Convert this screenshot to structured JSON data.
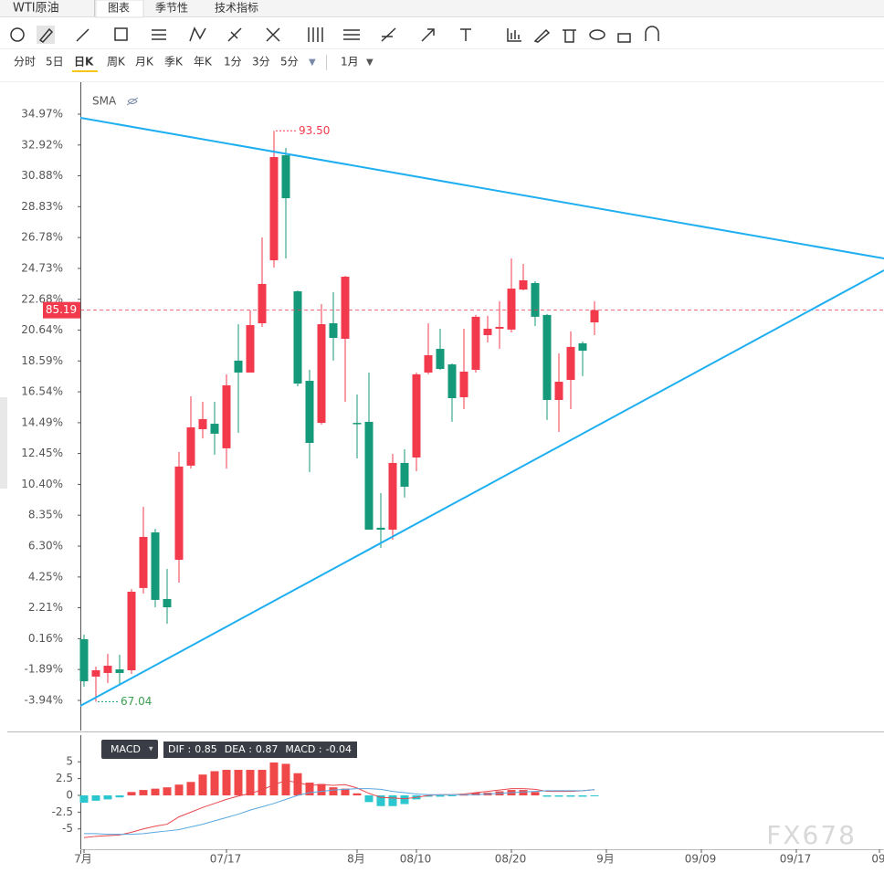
{
  "header": {
    "symbol": "WTI原油",
    "tabs": [
      "图表",
      "季节性",
      "技术指标"
    ]
  },
  "periods": [
    "分时",
    "5日",
    "日K",
    "周K",
    "月K",
    "季K",
    "年K",
    "1分",
    "3分",
    "5分"
  ],
  "range": "1月",
  "watermark": "FX678",
  "chart_data": [
    {
      "type": "candlestick",
      "indicator": "SMA",
      "categories": [
        "7月",
        null,
        null,
        null,
        null,
        null,
        null,
        null,
        null,
        null,
        null,
        null,
        "07/17",
        null,
        null,
        null,
        null,
        null,
        null,
        null,
        null,
        null,
        null,
        "8月",
        null,
        null,
        null,
        null,
        "08/10",
        null,
        null,
        null,
        null,
        null,
        null,
        null,
        "08/20",
        null,
        null,
        null,
        null,
        null,
        null,
        null,
        "9月",
        null,
        null,
        null,
        null,
        null,
        null,
        null,
        "09/09",
        null,
        null,
        null,
        null,
        null,
        null,
        null,
        "09/17",
        null,
        null,
        null,
        null,
        null,
        null,
        "09"
      ],
      "open": [
        0.12,
        -2.36,
        -2.12,
        -1.88,
        -1.94,
        3.52,
        7.21,
        2.79,
        5.39,
        11.64,
        14.06,
        14.42,
        12.79,
        18.61,
        17.82,
        21.09,
        25.27,
        32.24,
        23.21,
        17.27,
        14.48,
        21.09,
        20.06,
        14.48,
        14.55,
        7.52,
        7.39,
        11.82,
        12.18,
        17.82,
        19.39,
        18.36,
        16.18,
        18.0,
        20.3,
        20.73,
        20.67,
        23.33,
        23.76,
        21.64,
        16.0,
        17.33,
        19.76,
        21.15,
        null,
        null,
        null,
        null,
        null,
        null,
        null,
        null,
        null,
        null,
        null,
        null,
        null,
        null,
        null,
        null,
        null,
        null,
        null,
        null,
        null,
        null,
        null,
        null
      ],
      "high": [
        0.42,
        -1.7,
        -0.85,
        -0.91,
        3.45,
        8.91,
        7.45,
        4.79,
        12.55,
        16.24,
        15.88,
        15.88,
        17.7,
        21.03,
        21.94,
        26.79,
        33.86,
        32.73,
        23.27,
        18.0,
        22.36,
        23.15,
        24.24,
        16.36,
        17.82,
        9.82,
        12.42,
        12.73,
        17.82,
        21.09,
        20.73,
        18.42,
        20.73,
        21.64,
        21.58,
        22.55,
        25.39,
        25.03,
        23.88,
        21.7,
        19.09,
        20.55,
        19.88,
        22.55,
        null,
        null,
        null,
        null,
        null,
        null,
        null,
        null,
        null,
        null,
        null,
        null,
        null,
        null,
        null,
        null,
        null,
        null,
        null,
        null,
        null,
        null,
        null,
        null
      ],
      "low": [
        -3.03,
        -4.02,
        -2.79,
        -2.91,
        -2.18,
        3.15,
        2.24,
        1.15,
        3.88,
        11.45,
        13.45,
        12.36,
        11.45,
        13.82,
        17.82,
        20.85,
        24.79,
        25.39,
        16.91,
        11.21,
        14.36,
        18.61,
        15.88,
        12.12,
        7.39,
        6.18,
        6.73,
        9.52,
        11.27,
        17.7,
        18.0,
        14.55,
        15.39,
        17.82,
        19.82,
        19.39,
        20.48,
        23.27,
        20.91,
        14.67,
        13.88,
        15.39,
        17.58,
        20.3,
        null,
        null,
        null,
        null,
        null,
        null,
        null,
        null,
        null,
        null,
        null,
        null,
        null,
        null,
        null,
        null,
        null,
        null,
        null,
        null,
        null,
        null,
        null,
        null
      ],
      "close": [
        -2.67,
        -1.94,
        -1.64,
        -2.12,
        3.27,
        6.91,
        2.73,
        2.24,
        11.58,
        14.18,
        14.73,
        13.76,
        16.97,
        17.82,
        20.97,
        23.7,
        32.12,
        29.39,
        17.09,
        13.15,
        21.03,
        20.12,
        24.18,
        14.42,
        7.39,
        7.39,
        11.82,
        10.24,
        17.7,
        18.97,
        18.06,
        16.12,
        17.88,
        21.52,
        20.73,
        20.85,
        23.39,
        23.94,
        21.52,
        16.0,
        17.21,
        19.52,
        19.27,
        21.96,
        null,
        null,
        null,
        null,
        null,
        null,
        null,
        null,
        null,
        null,
        null,
        null,
        null,
        null,
        null,
        null,
        null,
        null,
        null,
        null,
        null,
        null,
        null,
        null
      ],
      "up_color": "#f23a4c",
      "down_color": "#14997a",
      "ylim": [
        -5.94,
        37.09
      ],
      "yticks": [
        {
          "value": -3.94,
          "label": "-3.94%"
        },
        {
          "value": -1.89,
          "label": "-1.89%"
        },
        {
          "value": 0.16,
          "label": "0.16%"
        },
        {
          "value": 2.21,
          "label": "2.21%"
        },
        {
          "value": 4.25,
          "label": "4.25%"
        },
        {
          "value": 6.3,
          "label": "6.30%"
        },
        {
          "value": 8.35,
          "label": "8.35%"
        },
        {
          "value": 10.4,
          "label": "10.40%"
        },
        {
          "value": 12.45,
          "label": "12.45%"
        },
        {
          "value": 14.49,
          "label": "14.49%"
        },
        {
          "value": 16.54,
          "label": "16.54%"
        },
        {
          "value": 18.59,
          "label": "18.59%"
        },
        {
          "value": 20.64,
          "label": "20.64%"
        },
        {
          "value": 22.68,
          "label": "22.68%"
        },
        {
          "value": 24.73,
          "label": "24.73%"
        },
        {
          "value": 26.78,
          "label": "26.78%"
        },
        {
          "value": 28.83,
          "label": "28.83%"
        },
        {
          "value": 30.88,
          "label": "30.88%"
        },
        {
          "value": 32.92,
          "label": "32.92%"
        },
        {
          "value": 34.97,
          "label": "34.97%"
        }
      ],
      "max_label": "93.50",
      "min_label": "67.04",
      "last_label": "85.19"
    },
    {
      "type": "macd",
      "title": "MACD",
      "ylim": [
        -8.03,
        6.12
      ],
      "yticks": [
        5,
        2.5,
        0,
        -2.5,
        -5
      ],
      "readout": [
        {
          "label": "DIF :",
          "value": 0.85
        },
        {
          "label": "DEA :",
          "value": 0.87
        },
        {
          "label": "MACD :",
          "value": -0.04
        }
      ],
      "series": [
        {
          "type": "bar",
          "up_color": "#f04848",
          "down_color": "#2cc6cf",
          "values": [
            -1.1,
            -0.8,
            -0.6,
            -0.3,
            0.5,
            0.8,
            1.0,
            1.2,
            1.6,
            2.0,
            3.1,
            3.6,
            3.8,
            3.8,
            3.8,
            3.8,
            4.9,
            4.7,
            3.3,
            1.9,
            1.7,
            1.2,
            1.0,
            0.3,
            -1.0,
            -1.6,
            -1.6,
            -1.3,
            -0.6,
            -0.2,
            -0.2,
            -0.1,
            0.1,
            0.4,
            0.4,
            0.6,
            0.8,
            0.8,
            0.5,
            -0.2,
            -0.2,
            -0.2,
            -0.2,
            -0.04,
            null,
            null,
            null,
            null,
            null,
            null,
            null,
            null,
            null,
            null,
            null,
            null,
            null,
            null,
            null,
            null,
            null,
            null,
            null,
            null,
            null,
            null,
            null,
            null
          ]
        },
        {
          "type": "line",
          "color": "#e8474c",
          "values": [
            -6.3,
            -6.1,
            -6.0,
            -5.9,
            -5.5,
            -5.0,
            -4.6,
            -4.3,
            -3.2,
            -2.5,
            -1.8,
            -1.2,
            -0.6,
            -0.1,
            0.3,
            0.8,
            1.6,
            2.2,
            1.9,
            1.5,
            1.6,
            1.5,
            1.6,
            1.1,
            0.3,
            -0.3,
            -0.4,
            -0.5,
            -0.3,
            0.0,
            0.1,
            0.1,
            0.2,
            0.4,
            0.6,
            0.8,
            1.0,
            1.0,
            0.9,
            0.6,
            0.6,
            0.6,
            0.7,
            0.85,
            null,
            null,
            null,
            null,
            null,
            null,
            null,
            null,
            null,
            null,
            null,
            null,
            null,
            null,
            null,
            null,
            null,
            null,
            null,
            null,
            null,
            null,
            null,
            null
          ]
        },
        {
          "type": "line",
          "color": "#58a8e0",
          "values": [
            -5.7,
            -5.7,
            -5.8,
            -5.8,
            -5.8,
            -5.7,
            -5.5,
            -5.3,
            -5.1,
            -4.7,
            -4.3,
            -3.8,
            -3.3,
            -2.8,
            -2.2,
            -1.7,
            -1.2,
            -0.6,
            0.0,
            0.4,
            0.6,
            0.8,
            0.9,
            1.0,
            1.0,
            0.9,
            0.6,
            0.4,
            0.2,
            0.1,
            0.1,
            0.1,
            0.1,
            0.1,
            0.2,
            0.3,
            0.4,
            0.5,
            0.6,
            0.7,
            0.7,
            0.7,
            0.7,
            0.87,
            null,
            null,
            null,
            null,
            null,
            null,
            null,
            null,
            null,
            null,
            null,
            null,
            null,
            null,
            null,
            null,
            null,
            null,
            null,
            null,
            null,
            null,
            null,
            null
          ]
        }
      ]
    }
  ]
}
